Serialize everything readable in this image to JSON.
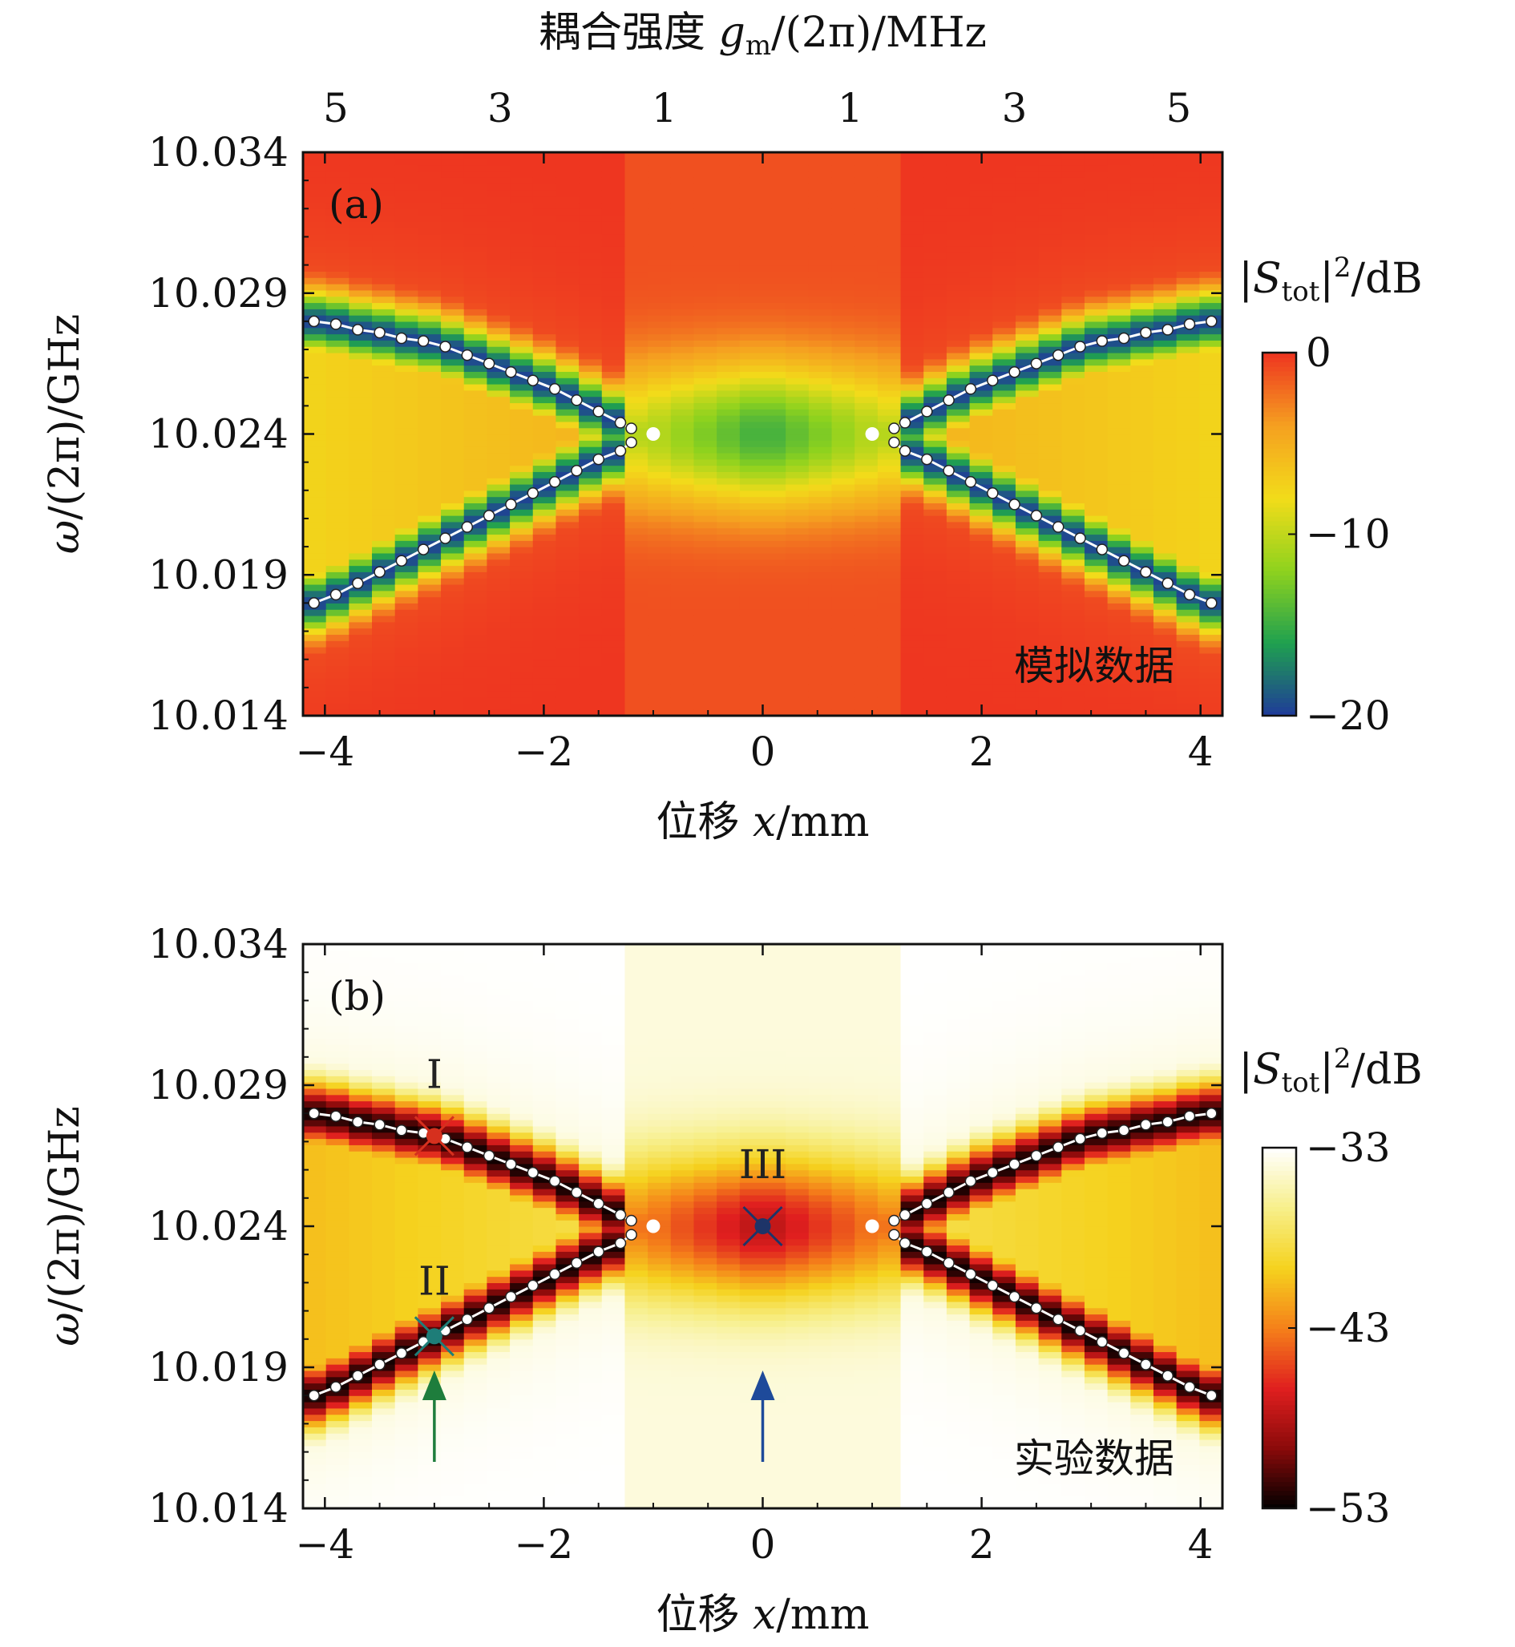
{
  "chart_data": [
    {
      "type": "heatmap",
      "panel_label": "(a)",
      "data_tag": "模拟数据",
      "top_axis_title": "耦合强度 gm/(2π)/MHz",
      "top_ticklabels": [
        "5",
        "3",
        "1",
        "1",
        "3",
        "5"
      ],
      "top_tick_x": [
        -3.9,
        -2.4,
        -0.9,
        0.8,
        2.3,
        3.8
      ],
      "xlabel": "位移 x/mm",
      "ylabel": "ω/(2π)/GHz",
      "xlim": [
        -4.2,
        4.2
      ],
      "ylim": [
        10.014,
        10.034
      ],
      "xticks": [
        -4,
        -2,
        0,
        2,
        4
      ],
      "xticklabels": [
        "−4",
        "−2",
        "0",
        "2",
        "4"
      ],
      "yticks": [
        10.014,
        10.019,
        10.024,
        10.029,
        10.034
      ],
      "yticklabels": [
        "10.014",
        "10.019",
        "10.024",
        "10.029",
        "10.034"
      ],
      "colorbar": {
        "title": "|Stot|²/dB",
        "ticks": [
          0,
          -10,
          -20
        ],
        "ticklabels": [
          "0",
          "−10",
          "−20"
        ],
        "range": [
          -20,
          0
        ],
        "colormap": [
          "#1f3a9a",
          "#1fa050",
          "#8ed21e",
          "#f2dc1a",
          "#f5a020",
          "#ee3520"
        ]
      },
      "background_color": "#f08a28",
      "center_color": "#ee7e20",
      "upper_branch": [
        [
          -4.1,
          10.028
        ],
        [
          -3.9,
          10.0279
        ],
        [
          -3.7,
          10.0277
        ],
        [
          -3.5,
          10.0276
        ],
        [
          -3.3,
          10.0274
        ],
        [
          -3.1,
          10.0273
        ],
        [
          -2.9,
          10.0271
        ],
        [
          -2.7,
          10.0268
        ],
        [
          -2.5,
          10.0265
        ],
        [
          -2.3,
          10.0262
        ],
        [
          -2.1,
          10.0259
        ],
        [
          -1.9,
          10.0256
        ],
        [
          -1.7,
          10.0252
        ],
        [
          -1.5,
          10.0248
        ],
        [
          -1.3,
          10.0244
        ],
        [
          -1.2,
          10.0242
        ]
      ],
      "lower_branch": [
        [
          -4.1,
          10.018
        ],
        [
          -3.9,
          10.0183
        ],
        [
          -3.7,
          10.0187
        ],
        [
          -3.5,
          10.0191
        ],
        [
          -3.3,
          10.0195
        ],
        [
          -3.1,
          10.0199
        ],
        [
          -2.9,
          10.0203
        ],
        [
          -2.7,
          10.0207
        ],
        [
          -2.5,
          10.0211
        ],
        [
          -2.3,
          10.0215
        ],
        [
          -2.1,
          10.0219
        ],
        [
          -1.9,
          10.0223
        ],
        [
          -1.7,
          10.0227
        ],
        [
          -1.5,
          10.0231
        ],
        [
          -1.3,
          10.0234
        ],
        [
          -1.2,
          10.0237
        ]
      ],
      "exceptional_points": [
        [
          -1.0,
          10.024
        ],
        [
          1.0,
          10.024
        ]
      ],
      "markers": []
    },
    {
      "type": "heatmap",
      "panel_label": "(b)",
      "data_tag": "实验数据",
      "xlabel": "位移 x/mm",
      "ylabel": "ω/(2π)/GHz",
      "xlim": [
        -4.2,
        4.2
      ],
      "ylim": [
        10.014,
        10.034
      ],
      "xticks": [
        -4,
        -2,
        0,
        2,
        4
      ],
      "xticklabels": [
        "−4",
        "−2",
        "0",
        "2",
        "4"
      ],
      "yticks": [
        10.014,
        10.019,
        10.024,
        10.029,
        10.034
      ],
      "yticklabels": [
        "10.014",
        "10.019",
        "10.024",
        "10.029",
        "10.034"
      ],
      "colorbar": {
        "title": "|Stot|²/dB",
        "ticks": [
          -33,
          -43,
          -53
        ],
        "ticklabels": [
          "−33",
          "−43",
          "−53"
        ],
        "range": [
          -53,
          -33
        ],
        "colormap": [
          "#000000",
          "#8a0a0a",
          "#e01f1f",
          "#f5801a",
          "#f5d21e",
          "#f7ef8a",
          "#ffffff"
        ]
      },
      "background_color": "#f3e65c",
      "center_color": "#f07a1c",
      "upper_branch": [
        [
          -4.1,
          10.028
        ],
        [
          -3.9,
          10.0279
        ],
        [
          -3.7,
          10.0277
        ],
        [
          -3.5,
          10.0276
        ],
        [
          -3.3,
          10.0274
        ],
        [
          -3.1,
          10.0273
        ],
        [
          -2.9,
          10.0271
        ],
        [
          -2.7,
          10.0268
        ],
        [
          -2.5,
          10.0265
        ],
        [
          -2.3,
          10.0262
        ],
        [
          -2.1,
          10.0259
        ],
        [
          -1.9,
          10.0256
        ],
        [
          -1.7,
          10.0252
        ],
        [
          -1.5,
          10.0248
        ],
        [
          -1.3,
          10.0244
        ],
        [
          -1.2,
          10.0242
        ]
      ],
      "lower_branch": [
        [
          -4.1,
          10.018
        ],
        [
          -3.9,
          10.0183
        ],
        [
          -3.7,
          10.0187
        ],
        [
          -3.5,
          10.0191
        ],
        [
          -3.3,
          10.0195
        ],
        [
          -3.1,
          10.0199
        ],
        [
          -2.9,
          10.0203
        ],
        [
          -2.7,
          10.0207
        ],
        [
          -2.5,
          10.0211
        ],
        [
          -2.3,
          10.0215
        ],
        [
          -2.1,
          10.0219
        ],
        [
          -1.9,
          10.0223
        ],
        [
          -1.7,
          10.0227
        ],
        [
          -1.5,
          10.0231
        ],
        [
          -1.3,
          10.0234
        ],
        [
          -1.2,
          10.0237
        ]
      ],
      "exceptional_points": [
        [
          -1.0,
          10.024
        ],
        [
          1.0,
          10.024
        ]
      ],
      "markers": [
        {
          "label": "I",
          "x": -3.0,
          "y": 10.0272,
          "color": "#d6301e"
        },
        {
          "label": "II",
          "x": -3.0,
          "y": 10.0201,
          "color": "#1e7d78"
        },
        {
          "label": "III",
          "x": 0.0,
          "y": 10.024,
          "color": "#1e3468"
        }
      ],
      "arrows": [
        {
          "x": -3.0,
          "color": "#1e7d3c"
        },
        {
          "x": 0.0,
          "color": "#1e4a9a"
        }
      ]
    }
  ]
}
